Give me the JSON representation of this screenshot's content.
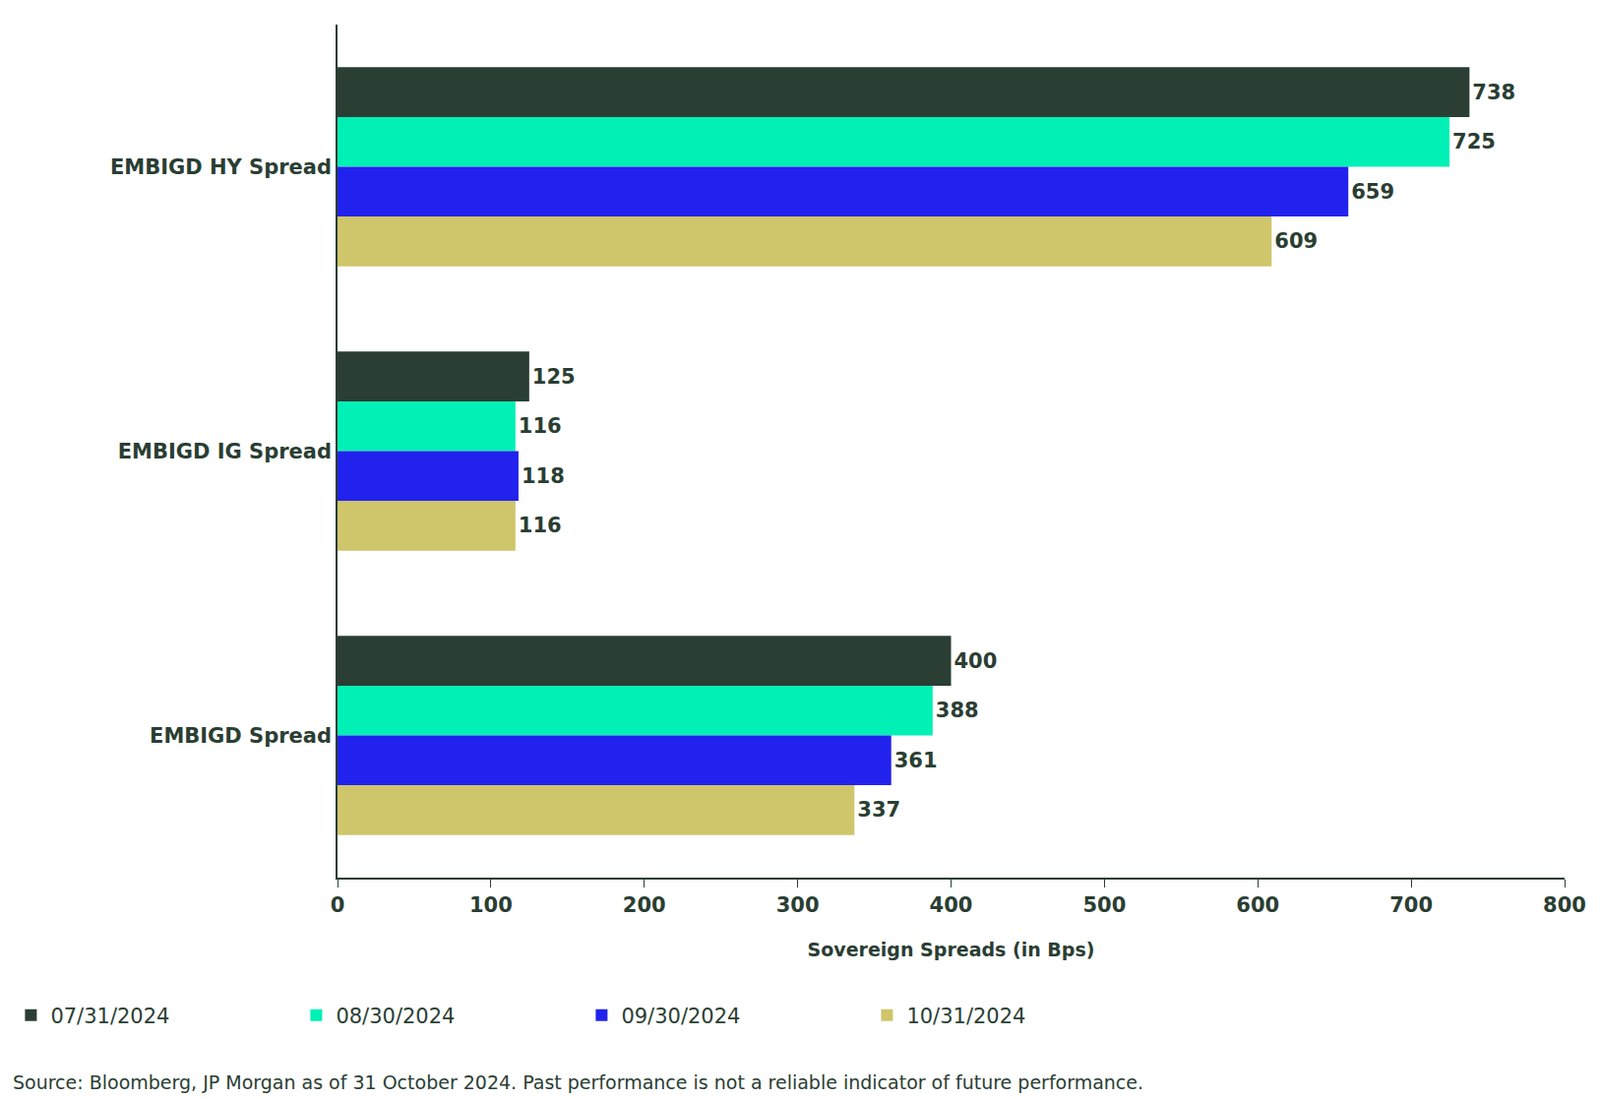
{
  "chart_data": {
    "type": "bar",
    "orientation": "horizontal",
    "categories": [
      "EMBIGD HY Spread",
      "EMBIGD IG Spread",
      "EMBIGD Spread"
    ],
    "series": [
      {
        "name": "07/31/2024",
        "color": "#2a3e33",
        "values": [
          738,
          125,
          400
        ]
      },
      {
        "name": "08/30/2024",
        "color": "#00f0b5",
        "values": [
          725,
          116,
          388
        ]
      },
      {
        "name": "09/30/2024",
        "color": "#2222ee",
        "values": [
          659,
          118,
          361
        ]
      },
      {
        "name": "10/31/2024",
        "color": "#cfc56a",
        "values": [
          609,
          116,
          337
        ]
      }
    ],
    "x_label": "Sovereign Spreads (in Bps)",
    "xlim": [
      0,
      800
    ],
    "xticks": [
      0,
      100,
      200,
      300,
      400,
      500,
      600,
      700,
      800
    ],
    "grid": false,
    "legend": "bottom",
    "data_labels": true,
    "source": "Source: Bloomberg, JP Morgan as of 31 October 2024. Past performance is not a reliable indicator of future performance."
  }
}
